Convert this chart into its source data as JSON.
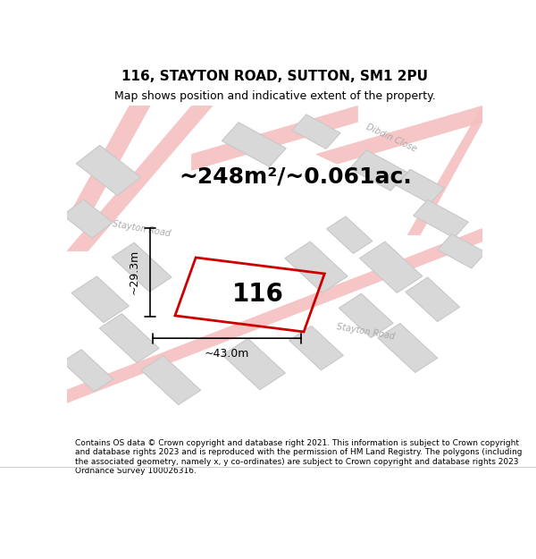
{
  "title": "116, STAYTON ROAD, SUTTON, SM1 2PU",
  "subtitle": "Map shows position and indicative extent of the property.",
  "area_text": "~248m²/~0.061ac.",
  "width_label": "~43.0m",
  "height_label": "~29.3m",
  "property_label": "116",
  "footer": "Contains OS data © Crown copyright and database right 2021. This information is subject to Crown copyright and database rights 2023 and is reproduced with the permission of HM Land Registry. The polygons (including the associated geometry, namely x, y co-ordinates) are subject to Crown copyright and database rights 2023 Ordnance Survey 100026316.",
  "bg_color": "#f5f5f5",
  "map_bg": "#f0eeee",
  "road_color": "#f5c0c0",
  "building_color": "#d8d8d8",
  "building_edge": "#c8c8c8",
  "property_color": "#cc0000",
  "dim_color": "#111111",
  "title_fontsize": 11,
  "subtitle_fontsize": 9,
  "area_fontsize": 18,
  "label_fontsize": 9,
  "property_label_fontsize": 20,
  "footer_fontsize": 6.5
}
